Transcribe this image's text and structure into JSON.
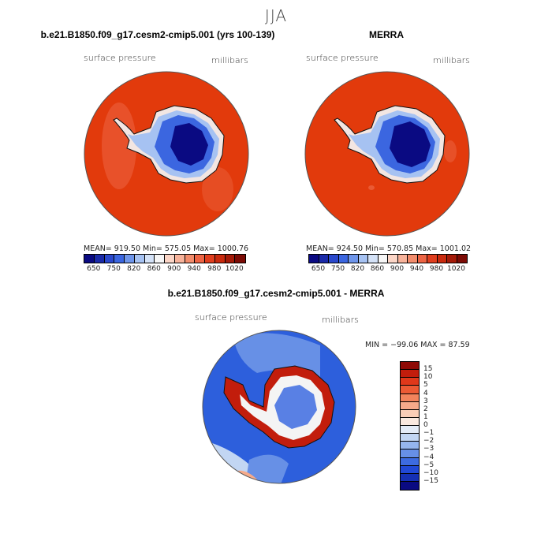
{
  "figure": {
    "season": "JJA"
  },
  "panels": {
    "model": {
      "title": "b.e21.B1850.f09_g17.cesm2-cmip5.001 (yrs 100-139)",
      "field_label": "surface pressure",
      "units_label": "millibars",
      "stats": "MEAN= 919.50   Min= 575.05   Max= 1000.76"
    },
    "obs": {
      "title": "MERRA",
      "field_label": "surface pressure",
      "units_label": "millibars",
      "stats": "MEAN= 924.50   Min= 570.85   Max= 1001.02"
    },
    "diff": {
      "title": "b.e21.B1850.f09_g17.cesm2-cmip5.001 - MERRA",
      "field_label": "surface pressure",
      "units_label": "millibars",
      "stats": "MIN = −99.06  MAX =  87.59"
    }
  },
  "colorbars": {
    "absolute": {
      "ticks": [
        "650",
        "750",
        "820",
        "860",
        "900",
        "940",
        "980",
        "1020"
      ],
      "colors": [
        "#0a0a82",
        "#1a2aa8",
        "#2a48cc",
        "#3b66e0",
        "#6e95ea",
        "#a6c2f2",
        "#d4e2f7",
        "#f6f6f6",
        "#fbd5c6",
        "#f7b29a",
        "#f28c6c",
        "#ed6444",
        "#e03e1e",
        "#c92a0e",
        "#a41a08",
        "#7c0b05"
      ]
    },
    "difference": {
      "ticks": [
        "15",
        "10",
        "5",
        "4",
        "3",
        "2",
        "1",
        "0",
        "−1",
        "−2",
        "−3",
        "−4",
        "−5",
        "−10",
        "−15"
      ],
      "colors": [
        "#8e0a06",
        "#c21d0c",
        "#e0381a",
        "#ec5a34",
        "#f2845c",
        "#f6aa8a",
        "#f9cdb6",
        "#fae9df",
        "#e4ecf7",
        "#c2d6f3",
        "#95b6ee",
        "#6790e6",
        "#3d6be0",
        "#2149d6",
        "#1530b4",
        "#0a0a82"
      ]
    }
  },
  "colors": {
    "ocean_pressure": "#e23a0c",
    "antarctic_plateau": "#0a0a82",
    "diff_background": "#2d5fdc"
  }
}
